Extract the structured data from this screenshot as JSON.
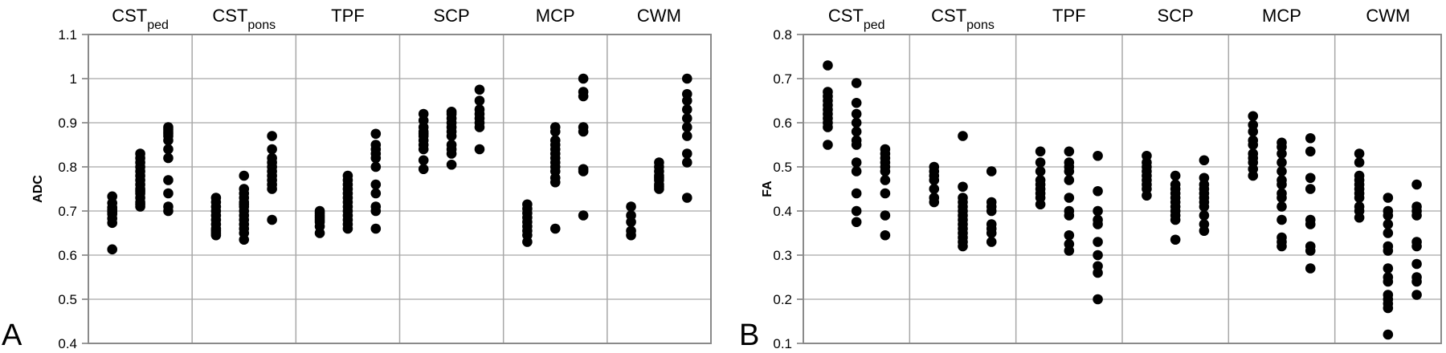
{
  "chart_data": [
    {
      "type": "scatter",
      "panel_letter": "A",
      "ylabel": "ADC",
      "ylim": [
        0.4,
        1.1
      ],
      "yticks": [
        "0.4",
        "0.5",
        "0.6",
        "0.7",
        "0.8",
        "0.9",
        "1",
        "1.1"
      ],
      "categories": [
        {
          "main": "CST",
          "sub": "ped"
        },
        {
          "main": "CST",
          "sub": "pons"
        },
        {
          "main": "TPF",
          "sub": ""
        },
        {
          "main": "SCP",
          "sub": ""
        },
        {
          "main": "MCP",
          "sub": ""
        },
        {
          "main": "CWM",
          "sub": ""
        }
      ],
      "grid": true,
      "groups": [
        [
          [
            0.613,
            0.673,
            0.683,
            0.693,
            0.698,
            0.703,
            0.708,
            0.718,
            0.733
          ],
          [
            0.71,
            0.715,
            0.72,
            0.73,
            0.74,
            0.745,
            0.75,
            0.76,
            0.77,
            0.78,
            0.79,
            0.8,
            0.81,
            0.82,
            0.83
          ],
          [
            0.7,
            0.71,
            0.74,
            0.77,
            0.82,
            0.84,
            0.86,
            0.87,
            0.875,
            0.88,
            0.885,
            0.89
          ]
        ],
        [
          [
            0.645,
            0.65,
            0.655,
            0.66,
            0.67,
            0.68,
            0.69,
            0.7,
            0.71,
            0.72,
            0.73
          ],
          [
            0.635,
            0.65,
            0.66,
            0.67,
            0.68,
            0.69,
            0.7,
            0.71,
            0.715,
            0.72,
            0.73,
            0.74,
            0.75,
            0.78
          ],
          [
            0.68,
            0.75,
            0.76,
            0.77,
            0.78,
            0.79,
            0.8,
            0.81,
            0.82,
            0.84,
            0.87
          ]
        ],
        [
          [
            0.65,
            0.665,
            0.675,
            0.68,
            0.685,
            0.69,
            0.695,
            0.7
          ],
          [
            0.66,
            0.67,
            0.68,
            0.69,
            0.7,
            0.71,
            0.72,
            0.73,
            0.74,
            0.75,
            0.76,
            0.77,
            0.78
          ],
          [
            0.66,
            0.7,
            0.71,
            0.74,
            0.76,
            0.8,
            0.82,
            0.83,
            0.84,
            0.85,
            0.875
          ]
        ],
        [
          [
            0.795,
            0.815,
            0.84,
            0.85,
            0.86,
            0.87,
            0.875,
            0.88,
            0.89,
            0.905,
            0.92
          ],
          [
            0.805,
            0.83,
            0.84,
            0.85,
            0.87,
            0.88,
            0.89,
            0.9,
            0.91,
            0.92,
            0.925
          ],
          [
            0.84,
            0.89,
            0.9,
            0.91,
            0.92,
            0.93,
            0.95,
            0.975
          ]
        ],
        [
          [
            0.63,
            0.645,
            0.655,
            0.665,
            0.675,
            0.685,
            0.695,
            0.705,
            0.715
          ],
          [
            0.66,
            0.765,
            0.775,
            0.79,
            0.8,
            0.81,
            0.82,
            0.83,
            0.84,
            0.85,
            0.86,
            0.88,
            0.89
          ],
          [
            0.69,
            0.79,
            0.795,
            0.88,
            0.89,
            0.96,
            0.97,
            1.0
          ]
        ],
        [
          [
            0.645,
            0.655,
            0.675,
            0.69,
            0.71
          ],
          [
            0.75,
            0.755,
            0.76,
            0.77,
            0.775,
            0.78,
            0.79,
            0.8,
            0.81
          ],
          [
            0.73,
            0.81,
            0.83,
            0.87,
            0.89,
            0.91,
            0.93,
            0.95,
            0.965,
            1.0
          ]
        ]
      ]
    },
    {
      "type": "scatter",
      "panel_letter": "B",
      "ylabel": "FA",
      "ylim": [
        0.1,
        0.8
      ],
      "yticks": [
        "0.1",
        "0.2",
        "0.3",
        "0.4",
        "0.5",
        "0.6",
        "0.7",
        "0.8"
      ],
      "categories": [
        {
          "main": "CST",
          "sub": "ped"
        },
        {
          "main": "CST",
          "sub": "pons"
        },
        {
          "main": "TPF",
          "sub": ""
        },
        {
          "main": "SCP",
          "sub": ""
        },
        {
          "main": "MCP",
          "sub": ""
        },
        {
          "main": "CWM",
          "sub": ""
        }
      ],
      "grid": true,
      "groups": [
        [
          [
            0.55,
            0.59,
            0.6,
            0.61,
            0.62,
            0.63,
            0.64,
            0.65,
            0.66,
            0.67,
            0.73
          ],
          [
            0.375,
            0.4,
            0.44,
            0.49,
            0.51,
            0.55,
            0.56,
            0.58,
            0.6,
            0.62,
            0.645,
            0.69
          ],
          [
            0.345,
            0.39,
            0.44,
            0.47,
            0.49,
            0.5,
            0.51,
            0.52,
            0.53,
            0.54
          ]
        ],
        [
          [
            0.42,
            0.43,
            0.45,
            0.47,
            0.48,
            0.49,
            0.5
          ],
          [
            0.32,
            0.33,
            0.34,
            0.35,
            0.36,
            0.37,
            0.38,
            0.39,
            0.4,
            0.41,
            0.42,
            0.43,
            0.455,
            0.57
          ],
          [
            0.33,
            0.35,
            0.36,
            0.37,
            0.4,
            0.41,
            0.42,
            0.49
          ]
        ],
        [
          [
            0.415,
            0.43,
            0.44,
            0.45,
            0.46,
            0.47,
            0.49,
            0.51,
            0.535
          ],
          [
            0.31,
            0.325,
            0.345,
            0.39,
            0.4,
            0.43,
            0.47,
            0.49,
            0.5,
            0.51,
            0.535
          ],
          [
            0.2,
            0.26,
            0.275,
            0.3,
            0.33,
            0.37,
            0.38,
            0.4,
            0.445,
            0.525
          ]
        ],
        [
          [
            0.435,
            0.45,
            0.46,
            0.47,
            0.48,
            0.49,
            0.5,
            0.51,
            0.525
          ],
          [
            0.335,
            0.38,
            0.39,
            0.4,
            0.41,
            0.42,
            0.43,
            0.44,
            0.45,
            0.46,
            0.48
          ],
          [
            0.355,
            0.37,
            0.39,
            0.41,
            0.42,
            0.43,
            0.44,
            0.45,
            0.46,
            0.475,
            0.515
          ]
        ],
        [
          [
            0.48,
            0.495,
            0.51,
            0.52,
            0.53,
            0.55,
            0.56,
            0.58,
            0.595,
            0.615
          ],
          [
            0.32,
            0.33,
            0.34,
            0.38,
            0.41,
            0.43,
            0.44,
            0.46,
            0.47,
            0.49,
            0.51,
            0.53,
            0.545,
            0.555
          ],
          [
            0.27,
            0.31,
            0.32,
            0.37,
            0.38,
            0.45,
            0.475,
            0.535,
            0.565
          ]
        ],
        [
          [
            0.385,
            0.4,
            0.41,
            0.43,
            0.44,
            0.45,
            0.46,
            0.47,
            0.48,
            0.51,
            0.53
          ],
          [
            0.12,
            0.18,
            0.19,
            0.2,
            0.21,
            0.24,
            0.25,
            0.27,
            0.31,
            0.32,
            0.35,
            0.37,
            0.39,
            0.4,
            0.43
          ],
          [
            0.21,
            0.24,
            0.25,
            0.28,
            0.32,
            0.33,
            0.39,
            0.4,
            0.41,
            0.46
          ]
        ]
      ]
    }
  ]
}
